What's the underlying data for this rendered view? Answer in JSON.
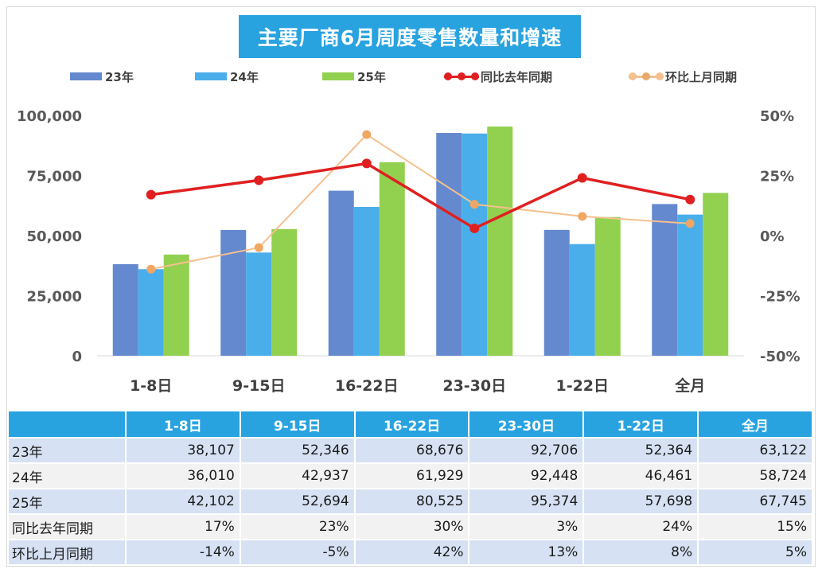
{
  "title": "主要厂商6月周度零售数量和增速",
  "colors": {
    "s23": "#6589cf",
    "s24": "#4aaeea",
    "s25": "#92d050",
    "yoy": "#e02020",
    "mom": "#f5c08e",
    "title_bg": "#29a3e0",
    "table_header": "#29a3e0"
  },
  "legend": [
    {
      "label": "23年",
      "kind": "bar",
      "color": "#6589cf"
    },
    {
      "label": "24年",
      "kind": "bar",
      "color": "#4aaeea"
    },
    {
      "label": "25年",
      "kind": "bar",
      "color": "#92d050"
    },
    {
      "label": "同比去年同期",
      "kind": "line",
      "color": "#e02020"
    },
    {
      "label": "环比上月同期",
      "kind": "line",
      "color": "#f5c08e"
    }
  ],
  "chart_data": {
    "type": "bar",
    "title": "主要厂商6月周度零售数量和增速",
    "categories": [
      "1-8日",
      "9-15日",
      "16-22日",
      "23-30日",
      "1-22日",
      "全月"
    ],
    "series": [
      {
        "name": "23年",
        "type": "bar",
        "axis": "left",
        "values": [
          38107,
          52346,
          68676,
          92706,
          52364,
          63122
        ]
      },
      {
        "name": "24年",
        "type": "bar",
        "axis": "left",
        "values": [
          36010,
          42937,
          61929,
          92448,
          46461,
          58724
        ]
      },
      {
        "name": "25年",
        "type": "bar",
        "axis": "left",
        "values": [
          42102,
          52694,
          80525,
          95374,
          57698,
          67745
        ]
      },
      {
        "name": "同比去年同期",
        "type": "line",
        "axis": "right",
        "values": [
          17,
          23,
          30,
          3,
          24,
          15
        ]
      },
      {
        "name": "环比上月同期",
        "type": "line",
        "axis": "right",
        "values": [
          -14,
          -5,
          42,
          13,
          8,
          5
        ]
      }
    ],
    "ylim": [
      0,
      100000
    ],
    "y2lim": [
      -50,
      50
    ],
    "yticks": [
      "0",
      "25,000",
      "50,000",
      "75,000",
      "100,000"
    ],
    "y2ticks": [
      "-50%",
      "-25%",
      "0%",
      "25%",
      "50%"
    ],
    "legend_position": "top",
    "grid": false
  },
  "table": {
    "headers": [
      "",
      "1-8日",
      "9-15日",
      "16-22日",
      "23-30日",
      "1-22日",
      "全月"
    ],
    "rows": [
      {
        "label": "23年",
        "cells": [
          "38,107",
          "52,346",
          "68,676",
          "92,706",
          "52,364",
          "63,122"
        ]
      },
      {
        "label": "24年",
        "cells": [
          "36,010",
          "42,937",
          "61,929",
          "92,448",
          "46,461",
          "58,724"
        ]
      },
      {
        "label": "25年",
        "cells": [
          "42,102",
          "52,694",
          "80,525",
          "95,374",
          "57,698",
          "67,745"
        ]
      },
      {
        "label": "同比去年同期",
        "cells": [
          "17%",
          "23%",
          "30%",
          "3%",
          "24%",
          "15%"
        ]
      },
      {
        "label": "环比上月同期",
        "cells": [
          "-14%",
          "-5%",
          "42%",
          "13%",
          "8%",
          "5%"
        ]
      }
    ]
  }
}
